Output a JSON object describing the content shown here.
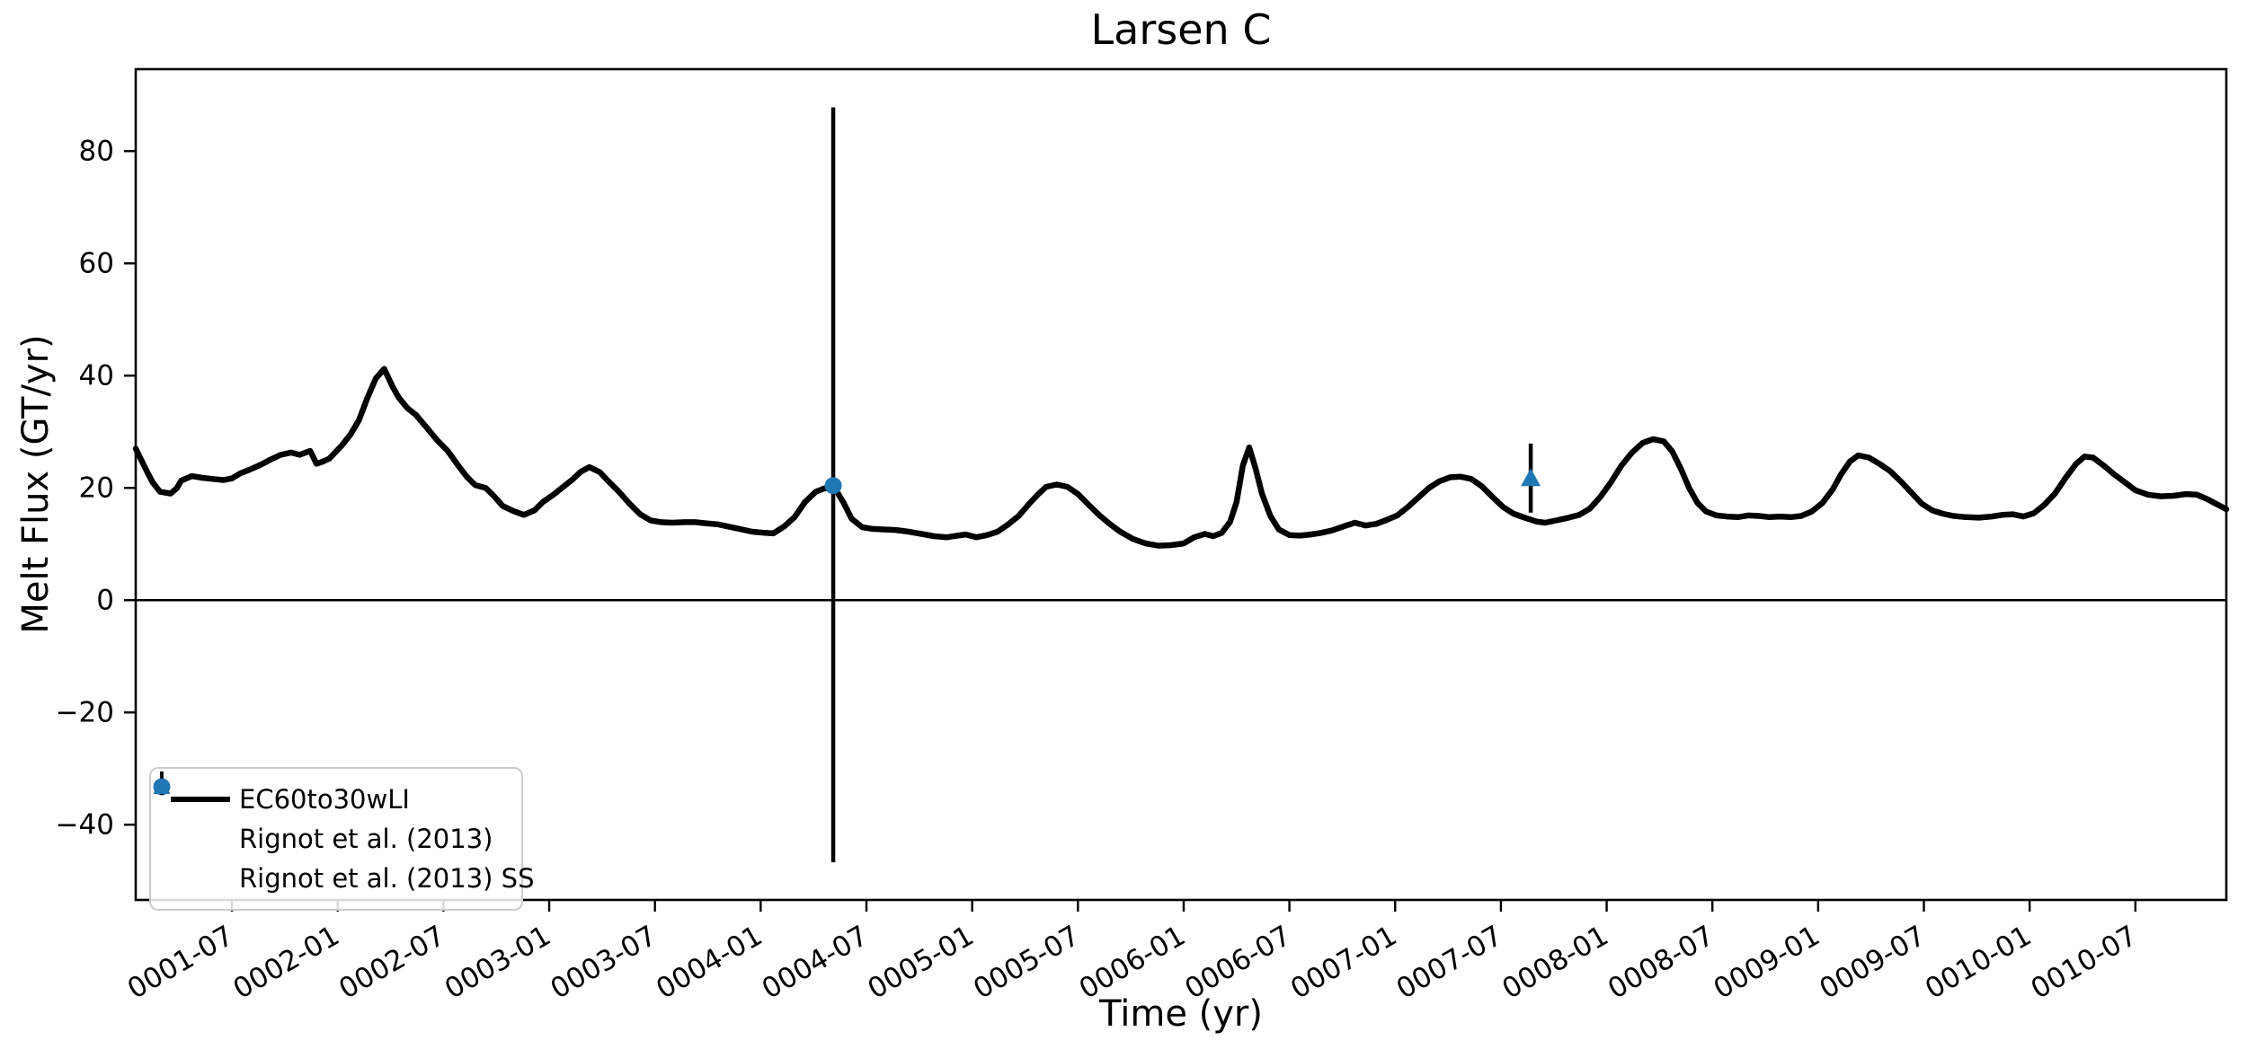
{
  "figure": {
    "title": "Larsen C",
    "xlabel": "Time (yr)",
    "ylabel": "Melt Flux (GT/yr)"
  },
  "chart_data": {
    "type": "line",
    "title": "Larsen C",
    "xlabel": "Time (yr)",
    "ylabel": "Melt Flux (GT/yr)",
    "grid": false,
    "zero_line": true,
    "xlim": [
      1.045,
      10.93
    ],
    "ylim": [
      -53.4,
      94.6
    ],
    "yticks": [
      {
        "v": -40,
        "label": "−40"
      },
      {
        "v": -20,
        "label": "−20"
      },
      {
        "v": 0,
        "label": "0"
      },
      {
        "v": 20,
        "label": "20"
      },
      {
        "v": 40,
        "label": "40"
      },
      {
        "v": 60,
        "label": "60"
      },
      {
        "v": 80,
        "label": "80"
      }
    ],
    "xticks": [
      {
        "t": 1.5,
        "label": "0001-07"
      },
      {
        "t": 2.0,
        "label": "0002-01"
      },
      {
        "t": 2.5,
        "label": "0002-07"
      },
      {
        "t": 3.0,
        "label": "0003-01"
      },
      {
        "t": 3.5,
        "label": "0003-07"
      },
      {
        "t": 4.0,
        "label": "0004-01"
      },
      {
        "t": 4.5,
        "label": "0004-07"
      },
      {
        "t": 5.0,
        "label": "0005-01"
      },
      {
        "t": 5.5,
        "label": "0005-07"
      },
      {
        "t": 6.0,
        "label": "0006-01"
      },
      {
        "t": 6.5,
        "label": "0006-07"
      },
      {
        "t": 7.0,
        "label": "0007-01"
      },
      {
        "t": 7.5,
        "label": "0007-07"
      },
      {
        "t": 8.0,
        "label": "0008-01"
      },
      {
        "t": 8.5,
        "label": "0008-07"
      },
      {
        "t": 9.0,
        "label": "0009-01"
      },
      {
        "t": 9.5,
        "label": "0009-07"
      },
      {
        "t": 10.0,
        "label": "0010-01"
      },
      {
        "t": 10.5,
        "label": "0010-07"
      }
    ],
    "series": [
      {
        "name": "EC60to30wLI",
        "type": "line",
        "color": "#000000",
        "points": [
          [
            1.045,
            27.0
          ],
          [
            1.1,
            22.8
          ],
          [
            1.125,
            21.0
          ],
          [
            1.16,
            19.3
          ],
          [
            1.21,
            19.0
          ],
          [
            1.24,
            20.0
          ],
          [
            1.26,
            21.3
          ],
          [
            1.31,
            22.1
          ],
          [
            1.36,
            21.8
          ],
          [
            1.41,
            21.6
          ],
          [
            1.46,
            21.4
          ],
          [
            1.5,
            21.7
          ],
          [
            1.54,
            22.6
          ],
          [
            1.58,
            23.2
          ],
          [
            1.64,
            24.2
          ],
          [
            1.68,
            25.0
          ],
          [
            1.73,
            25.9
          ],
          [
            1.78,
            26.3
          ],
          [
            1.82,
            25.9
          ],
          [
            1.87,
            26.6
          ],
          [
            1.9,
            24.3
          ],
          [
            1.93,
            24.7
          ],
          [
            1.96,
            25.2
          ],
          [
            2.02,
            27.6
          ],
          [
            2.06,
            29.5
          ],
          [
            2.1,
            32.0
          ],
          [
            2.14,
            36.0
          ],
          [
            2.18,
            39.5
          ],
          [
            2.22,
            41.2
          ],
          [
            2.26,
            38.0
          ],
          [
            2.29,
            36.0
          ],
          [
            2.33,
            34.2
          ],
          [
            2.37,
            33.0
          ],
          [
            2.42,
            30.8
          ],
          [
            2.47,
            28.5
          ],
          [
            2.52,
            26.6
          ],
          [
            2.57,
            24.0
          ],
          [
            2.61,
            22.0
          ],
          [
            2.65,
            20.5
          ],
          [
            2.7,
            20.0
          ],
          [
            2.74,
            18.5
          ],
          [
            2.78,
            16.8
          ],
          [
            2.83,
            15.9
          ],
          [
            2.88,
            15.2
          ],
          [
            2.93,
            16.0
          ],
          [
            2.97,
            17.5
          ],
          [
            3.02,
            18.8
          ],
          [
            3.06,
            20.0
          ],
          [
            3.11,
            21.5
          ],
          [
            3.15,
            22.9
          ],
          [
            3.19,
            23.7
          ],
          [
            3.24,
            22.8
          ],
          [
            3.28,
            21.2
          ],
          [
            3.33,
            19.3
          ],
          [
            3.38,
            17.2
          ],
          [
            3.43,
            15.3
          ],
          [
            3.48,
            14.2
          ],
          [
            3.53,
            13.9
          ],
          [
            3.58,
            13.8
          ],
          [
            3.64,
            13.9
          ],
          [
            3.69,
            13.9
          ],
          [
            3.74,
            13.7
          ],
          [
            3.8,
            13.5
          ],
          [
            3.85,
            13.1
          ],
          [
            3.9,
            12.7
          ],
          [
            3.96,
            12.2
          ],
          [
            4.02,
            12.0
          ],
          [
            4.06,
            11.9
          ],
          [
            4.11,
            13.1
          ],
          [
            4.16,
            14.8
          ],
          [
            4.21,
            17.5
          ],
          [
            4.26,
            19.3
          ],
          [
            4.3,
            19.9
          ],
          [
            4.35,
            20.0
          ],
          [
            4.39,
            17.5
          ],
          [
            4.43,
            14.5
          ],
          [
            4.48,
            13.0
          ],
          [
            4.53,
            12.7
          ],
          [
            4.58,
            12.6
          ],
          [
            4.64,
            12.5
          ],
          [
            4.7,
            12.2
          ],
          [
            4.76,
            11.8
          ],
          [
            4.82,
            11.4
          ],
          [
            4.88,
            11.2
          ],
          [
            4.93,
            11.5
          ],
          [
            4.97,
            11.7
          ],
          [
            5.02,
            11.2
          ],
          [
            5.07,
            11.6
          ],
          [
            5.12,
            12.2
          ],
          [
            5.17,
            13.5
          ],
          [
            5.22,
            15.0
          ],
          [
            5.27,
            17.2
          ],
          [
            5.31,
            18.8
          ],
          [
            5.35,
            20.2
          ],
          [
            5.4,
            20.6
          ],
          [
            5.45,
            20.2
          ],
          [
            5.5,
            18.9
          ],
          [
            5.55,
            17.0
          ],
          [
            5.6,
            15.2
          ],
          [
            5.65,
            13.6
          ],
          [
            5.7,
            12.2
          ],
          [
            5.76,
            10.9
          ],
          [
            5.82,
            10.1
          ],
          [
            5.88,
            9.7
          ],
          [
            5.94,
            9.8
          ],
          [
            6.0,
            10.1
          ],
          [
            6.05,
            11.2
          ],
          [
            6.1,
            11.8
          ],
          [
            6.14,
            11.4
          ],
          [
            6.18,
            12.0
          ],
          [
            6.22,
            14.0
          ],
          [
            6.25,
            17.5
          ],
          [
            6.28,
            24.0
          ],
          [
            6.31,
            27.2
          ],
          [
            6.34,
            23.5
          ],
          [
            6.37,
            19.0
          ],
          [
            6.41,
            15.0
          ],
          [
            6.45,
            12.6
          ],
          [
            6.5,
            11.6
          ],
          [
            6.55,
            11.5
          ],
          [
            6.6,
            11.7
          ],
          [
            6.65,
            12.0
          ],
          [
            6.7,
            12.4
          ],
          [
            6.76,
            13.2
          ],
          [
            6.81,
            13.8
          ],
          [
            6.86,
            13.3
          ],
          [
            6.91,
            13.6
          ],
          [
            6.96,
            14.3
          ],
          [
            7.01,
            15.1
          ],
          [
            7.06,
            16.6
          ],
          [
            7.11,
            18.3
          ],
          [
            7.16,
            20.0
          ],
          [
            7.21,
            21.2
          ],
          [
            7.26,
            21.9
          ],
          [
            7.31,
            22.0
          ],
          [
            7.36,
            21.6
          ],
          [
            7.41,
            20.3
          ],
          [
            7.46,
            18.4
          ],
          [
            7.51,
            16.6
          ],
          [
            7.56,
            15.4
          ],
          [
            7.62,
            14.6
          ],
          [
            7.67,
            14.0
          ],
          [
            7.71,
            13.8
          ],
          [
            7.76,
            14.2
          ],
          [
            7.82,
            14.7
          ],
          [
            7.87,
            15.2
          ],
          [
            7.92,
            16.3
          ],
          [
            7.97,
            18.4
          ],
          [
            8.02,
            21.0
          ],
          [
            8.07,
            24.0
          ],
          [
            8.12,
            26.3
          ],
          [
            8.17,
            28.0
          ],
          [
            8.22,
            28.7
          ],
          [
            8.27,
            28.3
          ],
          [
            8.31,
            26.5
          ],
          [
            8.35,
            23.5
          ],
          [
            8.39,
            20.0
          ],
          [
            8.43,
            17.3
          ],
          [
            8.47,
            15.8
          ],
          [
            8.52,
            15.1
          ],
          [
            8.57,
            14.9
          ],
          [
            8.62,
            14.8
          ],
          [
            8.67,
            15.1
          ],
          [
            8.72,
            15.0
          ],
          [
            8.77,
            14.8
          ],
          [
            8.82,
            14.9
          ],
          [
            8.87,
            14.8
          ],
          [
            8.92,
            15.0
          ],
          [
            8.97,
            15.8
          ],
          [
            9.02,
            17.3
          ],
          [
            9.07,
            19.8
          ],
          [
            9.11,
            22.5
          ],
          [
            9.15,
            24.7
          ],
          [
            9.19,
            25.8
          ],
          [
            9.24,
            25.4
          ],
          [
            9.29,
            24.3
          ],
          [
            9.34,
            23.0
          ],
          [
            9.39,
            21.2
          ],
          [
            9.44,
            19.2
          ],
          [
            9.49,
            17.2
          ],
          [
            9.54,
            16.0
          ],
          [
            9.59,
            15.4
          ],
          [
            9.64,
            15.0
          ],
          [
            9.7,
            14.8
          ],
          [
            9.76,
            14.7
          ],
          [
            9.82,
            14.9
          ],
          [
            9.87,
            15.2
          ],
          [
            9.92,
            15.3
          ],
          [
            9.97,
            14.9
          ],
          [
            10.02,
            15.5
          ],
          [
            10.07,
            17.0
          ],
          [
            10.12,
            19.0
          ],
          [
            10.17,
            21.8
          ],
          [
            10.22,
            24.3
          ],
          [
            10.26,
            25.6
          ],
          [
            10.3,
            25.4
          ],
          [
            10.35,
            24.0
          ],
          [
            10.4,
            22.4
          ],
          [
            10.45,
            21.0
          ],
          [
            10.5,
            19.6
          ],
          [
            10.56,
            18.8
          ],
          [
            10.62,
            18.5
          ],
          [
            10.68,
            18.6
          ],
          [
            10.74,
            18.9
          ],
          [
            10.79,
            18.8
          ],
          [
            10.84,
            18.0
          ],
          [
            10.88,
            17.2
          ],
          [
            10.93,
            16.2
          ]
        ]
      },
      {
        "name": "Rignot et al. (2013)",
        "type": "errorbar",
        "marker": "circle",
        "marker_color": "#1f77b4",
        "errorbar_color": "#000000",
        "x": 4.343,
        "y": 20.4,
        "err_lo": -46.7,
        "err_hi": 87.8
      },
      {
        "name": "Rignot et al. (2013) SS",
        "type": "errorbar",
        "marker": "triangle",
        "marker_color": "#1f77b4",
        "errorbar_color": "#000000",
        "x": 7.641,
        "y": 21.6,
        "err_lo": 15.6,
        "err_hi": 27.9
      }
    ],
    "legend": {
      "position": "lower left",
      "entries": [
        {
          "label": "EC60to30wLI",
          "swatch": "line"
        },
        {
          "label": "Rignot et al. (2013)",
          "swatch": "circle"
        },
        {
          "label": "Rignot et al. (2013) SS",
          "swatch": "triangle"
        }
      ]
    }
  }
}
